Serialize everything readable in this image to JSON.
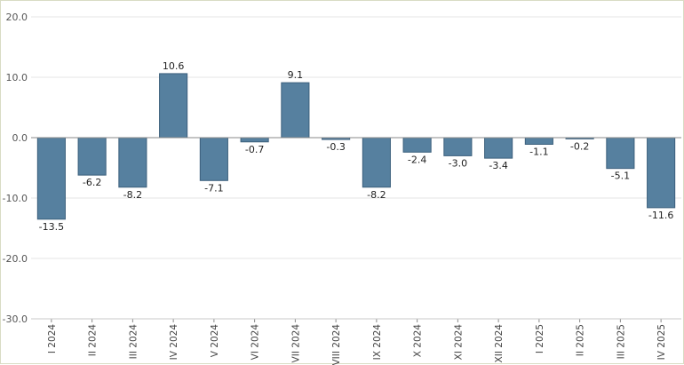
{
  "chart_data": {
    "type": "bar",
    "categories": [
      "I 2024",
      "II 2024",
      "III 2024",
      "IV 2024",
      "V 2024",
      "VI 2024",
      "VII 2024",
      "VIII 2024",
      "IX 2024",
      "X 2024",
      "XI 2024",
      "XII 2024",
      "I 2025",
      "II 2025",
      "III 2025",
      "IV 2025"
    ],
    "values": [
      -13.5,
      -6.2,
      -8.2,
      10.6,
      -7.1,
      -0.7,
      9.1,
      -0.3,
      -8.2,
      -2.4,
      -3.0,
      -3.4,
      -1.1,
      -0.2,
      -5.1,
      -11.6
    ],
    "data_labels": [
      "-13.5",
      "-6.2",
      "-8.2",
      "10.6",
      "-7.1",
      "-0.7",
      "9.1",
      "-0.3",
      "-8.2",
      "-2.4",
      "-3.0",
      "-3.4",
      "-1.1",
      "-0.2",
      "-5.1",
      "-11.6"
    ],
    "y_ticks": [
      20,
      10,
      0,
      -10,
      -20,
      -30
    ],
    "y_tick_labels": [
      "20.0",
      "10.0",
      "0.0",
      "-10.0",
      "-20.0",
      "-30.0"
    ],
    "ylim": [
      -30,
      20
    ],
    "grid": true,
    "legend": "none",
    "bar_color": "#56809f",
    "title": "",
    "xlabel": "",
    "ylabel": ""
  }
}
